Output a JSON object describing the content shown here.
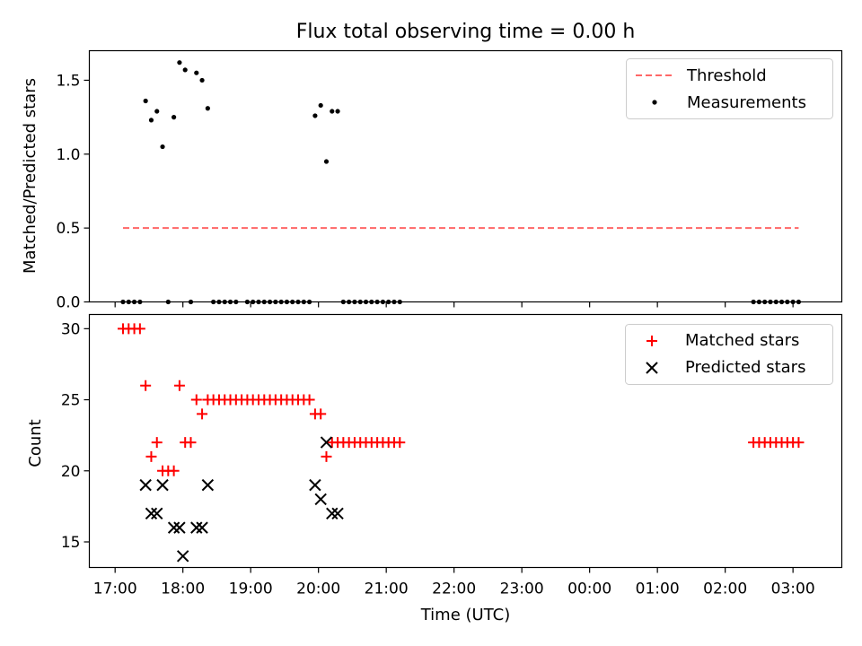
{
  "chart_data": [
    {
      "type": "scatter",
      "title": "Flux total observing time = 0.00 h",
      "ylabel": "Matched/Predicted stars",
      "xlabel": "",
      "ylim": [
        0,
        1.7
      ],
      "xlim_hours": [
        16.62,
        27.72
      ],
      "yticks": [
        0.0,
        0.5,
        1.0,
        1.5
      ],
      "ytick_labels": [
        "0.0",
        "0.5",
        "1.0",
        "1.5"
      ],
      "legend_position": "top-right",
      "threshold": {
        "name": "Threshold",
        "y": 0.5,
        "x_start": "17:07",
        "x_end": "03:05",
        "color": "#ff6666"
      },
      "series": [
        {
          "name": "Measurements",
          "color": "#000000",
          "marker": "dot",
          "points": [
            [
              "17:07",
              0
            ],
            [
              "17:12",
              0
            ],
            [
              "17:17",
              0
            ],
            [
              "17:22",
              0
            ],
            [
              "17:27",
              1.36
            ],
            [
              "17:32",
              1.23
            ],
            [
              "17:37",
              1.29
            ],
            [
              "17:42",
              1.05
            ],
            [
              "17:47",
              0
            ],
            [
              "17:52",
              1.25
            ],
            [
              "17:57",
              1.62
            ],
            [
              "18:02",
              1.57
            ],
            [
              "18:07",
              0
            ],
            [
              "18:12",
              1.55
            ],
            [
              "18:17",
              1.5
            ],
            [
              "18:22",
              1.31
            ],
            [
              "18:27",
              0
            ],
            [
              "18:32",
              0
            ],
            [
              "18:37",
              0
            ],
            [
              "18:42",
              0
            ],
            [
              "18:47",
              0
            ],
            [
              "18:57",
              0
            ],
            [
              "19:02",
              0
            ],
            [
              "19:07",
              0
            ],
            [
              "19:12",
              0
            ],
            [
              "19:17",
              0
            ],
            [
              "19:22",
              0
            ],
            [
              "19:27",
              0
            ],
            [
              "19:32",
              0
            ],
            [
              "19:37",
              0
            ],
            [
              "19:42",
              0
            ],
            [
              "19:47",
              0
            ],
            [
              "19:52",
              0
            ],
            [
              "19:57",
              1.26
            ],
            [
              "20:02",
              1.33
            ],
            [
              "20:07",
              0.95
            ],
            [
              "20:12",
              1.29
            ],
            [
              "20:17",
              1.29
            ],
            [
              "20:22",
              0
            ],
            [
              "20:27",
              0
            ],
            [
              "20:32",
              0
            ],
            [
              "20:37",
              0
            ],
            [
              "20:42",
              0
            ],
            [
              "20:47",
              0
            ],
            [
              "20:52",
              0
            ],
            [
              "20:57",
              0
            ],
            [
              "21:02",
              0
            ],
            [
              "21:07",
              0
            ],
            [
              "21:12",
              0
            ],
            [
              "02:25",
              0
            ],
            [
              "02:30",
              0
            ],
            [
              "02:35",
              0
            ],
            [
              "02:40",
              0
            ],
            [
              "02:45",
              0
            ],
            [
              "02:50",
              0
            ],
            [
              "02:55",
              0
            ],
            [
              "03:00",
              0
            ],
            [
              "03:05",
              0
            ]
          ]
        }
      ]
    },
    {
      "type": "scatter",
      "title": "",
      "ylabel": "Count",
      "xlabel": "Time (UTC)",
      "ylim": [
        13.2,
        31
      ],
      "xlim_hours": [
        16.62,
        27.72
      ],
      "yticks": [
        15,
        20,
        25,
        30
      ],
      "ytick_labels": [
        "15",
        "20",
        "25",
        "30"
      ],
      "xticks": [
        "17:00",
        "18:00",
        "19:00",
        "20:00",
        "21:00",
        "22:00",
        "23:00",
        "00:00",
        "01:00",
        "02:00",
        "03:00"
      ],
      "legend_position": "top-right",
      "series": [
        {
          "name": "Matched stars",
          "color": "#ff0000",
          "marker": "plus",
          "points": [
            [
              "17:07",
              30
            ],
            [
              "17:12",
              30
            ],
            [
              "17:17",
              30
            ],
            [
              "17:22",
              30
            ],
            [
              "17:27",
              26
            ],
            [
              "17:32",
              21
            ],
            [
              "17:37",
              22
            ],
            [
              "17:42",
              20
            ],
            [
              "17:47",
              20
            ],
            [
              "17:52",
              20
            ],
            [
              "17:57",
              26
            ],
            [
              "18:02",
              22
            ],
            [
              "18:07",
              22
            ],
            [
              "18:12",
              25
            ],
            [
              "18:17",
              24
            ],
            [
              "18:22",
              25
            ],
            [
              "18:27",
              25
            ],
            [
              "18:32",
              25
            ],
            [
              "18:37",
              25
            ],
            [
              "18:42",
              25
            ],
            [
              "18:47",
              25
            ],
            [
              "18:52",
              25
            ],
            [
              "18:57",
              25
            ],
            [
              "19:02",
              25
            ],
            [
              "19:07",
              25
            ],
            [
              "19:12",
              25
            ],
            [
              "19:17",
              25
            ],
            [
              "19:22",
              25
            ],
            [
              "19:27",
              25
            ],
            [
              "19:32",
              25
            ],
            [
              "19:37",
              25
            ],
            [
              "19:42",
              25
            ],
            [
              "19:47",
              25
            ],
            [
              "19:52",
              25
            ],
            [
              "19:57",
              24
            ],
            [
              "20:02",
              24
            ],
            [
              "20:07",
              21
            ],
            [
              "20:12",
              22
            ],
            [
              "20:17",
              22
            ],
            [
              "20:22",
              22
            ],
            [
              "20:27",
              22
            ],
            [
              "20:32",
              22
            ],
            [
              "20:37",
              22
            ],
            [
              "20:42",
              22
            ],
            [
              "20:47",
              22
            ],
            [
              "20:52",
              22
            ],
            [
              "20:57",
              22
            ],
            [
              "21:02",
              22
            ],
            [
              "21:07",
              22
            ],
            [
              "21:12",
              22
            ],
            [
              "02:25",
              22
            ],
            [
              "02:30",
              22
            ],
            [
              "02:35",
              22
            ],
            [
              "02:40",
              22
            ],
            [
              "02:45",
              22
            ],
            [
              "02:50",
              22
            ],
            [
              "02:55",
              22
            ],
            [
              "03:00",
              22
            ],
            [
              "03:05",
              22
            ]
          ]
        },
        {
          "name": "Predicted stars",
          "color": "#000000",
          "marker": "x",
          "points": [
            [
              "17:27",
              19
            ],
            [
              "17:32",
              17
            ],
            [
              "17:37",
              17
            ],
            [
              "17:42",
              19
            ],
            [
              "17:52",
              16
            ],
            [
              "17:57",
              16
            ],
            [
              "18:00",
              14
            ],
            [
              "18:12",
              16
            ],
            [
              "18:17",
              16
            ],
            [
              "18:22",
              19
            ],
            [
              "19:57",
              19
            ],
            [
              "20:02",
              18
            ],
            [
              "20:07",
              22
            ],
            [
              "20:12",
              17
            ],
            [
              "20:17",
              17
            ]
          ]
        }
      ]
    }
  ]
}
